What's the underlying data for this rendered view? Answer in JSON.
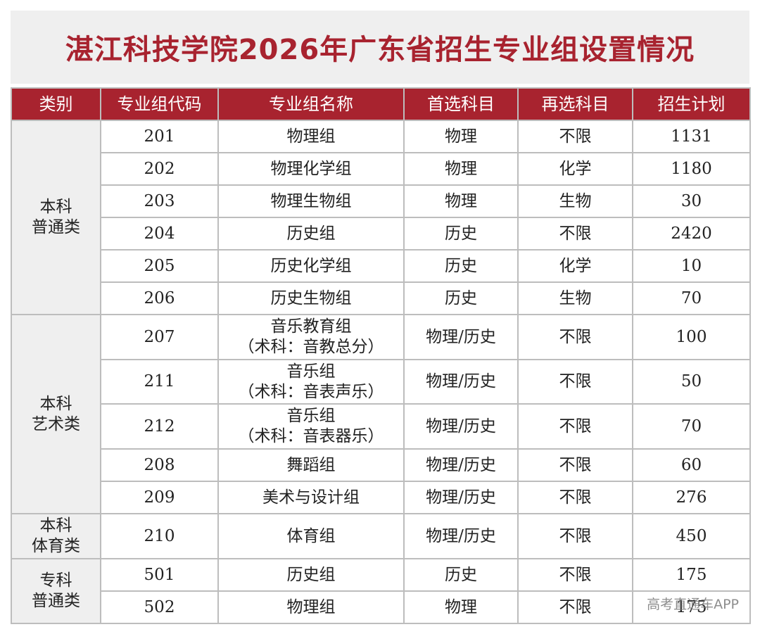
{
  "title": "湛江科技学院2026年广东省招生专业组设置情况",
  "headers": [
    "类别",
    "专业组代码",
    "专业组名称",
    "首选科目",
    "再选科目",
    "招生计划"
  ],
  "categories": [
    {
      "line1": "本科",
      "line2": "普通类"
    },
    {
      "line1": "本科",
      "line2": "艺术类"
    },
    {
      "line1": "本科",
      "line2": "体育类"
    },
    {
      "line1": "专科",
      "line2": "普通类"
    }
  ],
  "rows": [
    {
      "code": "201",
      "name": "物理组",
      "name2": "",
      "first": "物理",
      "second": "不限",
      "plan": "1131"
    },
    {
      "code": "202",
      "name": "物理化学组",
      "name2": "",
      "first": "物理",
      "second": "化学",
      "plan": "1180"
    },
    {
      "code": "203",
      "name": "物理生物组",
      "name2": "",
      "first": "物理",
      "second": "生物",
      "plan": "30"
    },
    {
      "code": "204",
      "name": "历史组",
      "name2": "",
      "first": "历史",
      "second": "不限",
      "plan": "2420"
    },
    {
      "code": "205",
      "name": "历史化学组",
      "name2": "",
      "first": "历史",
      "second": "化学",
      "plan": "10"
    },
    {
      "code": "206",
      "name": "历史生物组",
      "name2": "",
      "first": "历史",
      "second": "生物",
      "plan": "70"
    },
    {
      "code": "207",
      "name": "音乐教育组",
      "name2": "（术科：音教总分）",
      "first": "物理/历史",
      "second": "不限",
      "plan": "100"
    },
    {
      "code": "211",
      "name": "音乐组",
      "name2": "（术科：音表声乐）",
      "first": "物理/历史",
      "second": "不限",
      "plan": "50"
    },
    {
      "code": "212",
      "name": "音乐组",
      "name2": "（术科：音表器乐）",
      "first": "物理/历史",
      "second": "不限",
      "plan": "70"
    },
    {
      "code": "208",
      "name": "舞蹈组",
      "name2": "",
      "first": "物理/历史",
      "second": "不限",
      "plan": "60"
    },
    {
      "code": "209",
      "name": "美术与设计组",
      "name2": "",
      "first": "物理/历史",
      "second": "不限",
      "plan": "276"
    },
    {
      "code": "210",
      "name": "体育组",
      "name2": "",
      "first": "物理/历史",
      "second": "不限",
      "plan": "450"
    },
    {
      "code": "501",
      "name": "历史组",
      "name2": "",
      "first": "历史",
      "second": "不限",
      "plan": "175"
    },
    {
      "code": "502",
      "name": "物理组",
      "name2": "",
      "first": "物理",
      "second": "不限",
      "plan": "175"
    }
  ],
  "watermark": "高考直通车APP",
  "colors": {
    "accent": "#a8232f",
    "band": "#efefef",
    "border": "#bdbdbd"
  }
}
